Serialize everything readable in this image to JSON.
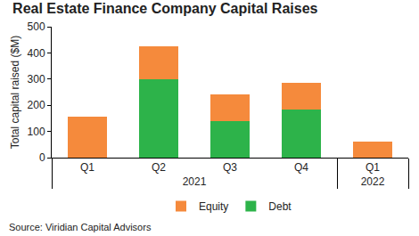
{
  "chart_data": {
    "type": "bar",
    "title": "Real Estate Finance Company Capital Raises",
    "y_label": "Total capital raised ($M)",
    "categories": [
      "Q1",
      "Q2",
      "Q3",
      "Q4",
      "Q1"
    ],
    "category_groups": [
      "2021",
      "2021",
      "2021",
      "2021",
      "2022"
    ],
    "series": [
      {
        "name": "Debt",
        "color": "#2db34a",
        "values": [
          0,
          300,
          140,
          185,
          0
        ]
      },
      {
        "name": "Equity",
        "color": "#f58a3c",
        "values": [
          155,
          125,
          102,
          100,
          60
        ]
      }
    ],
    "stacked": true,
    "ylim": [
      0,
      500
    ],
    "yticks": [
      0,
      100,
      200,
      300,
      400,
      500
    ],
    "grid": false,
    "legend": "bottom",
    "source": "Source: Viridian Capital Advisors"
  }
}
